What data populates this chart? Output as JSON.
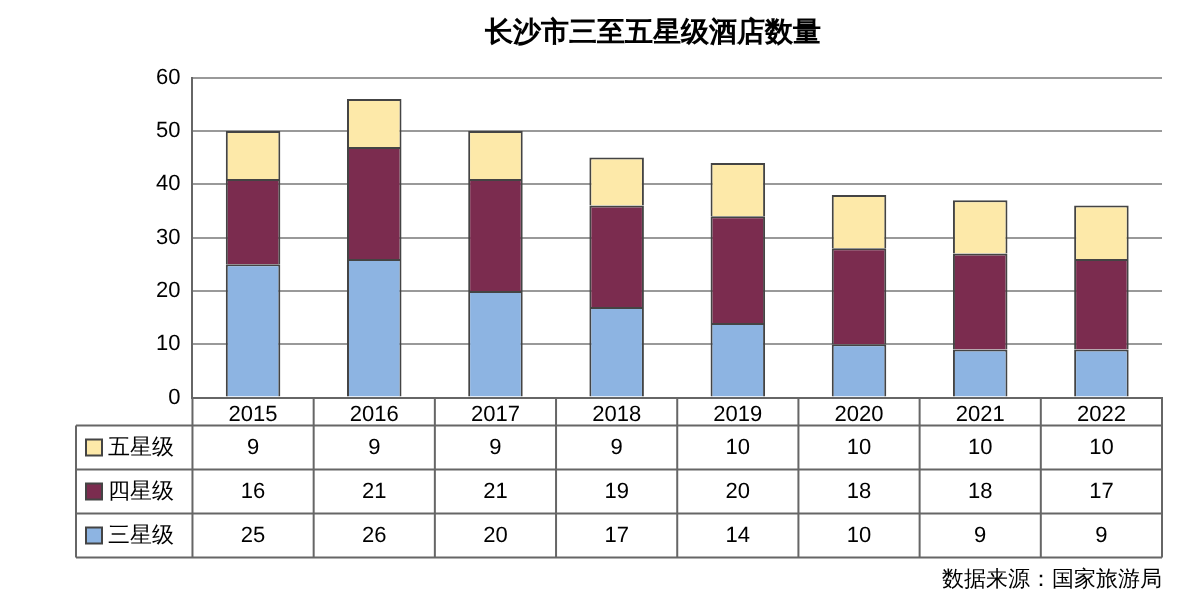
{
  "chart_data": {
    "type": "bar",
    "title": "长沙市三至五星级酒店数量",
    "categories": [
      "2015",
      "2016",
      "2017",
      "2018",
      "2019",
      "2020",
      "2021",
      "2022"
    ],
    "stacked": true,
    "series": [
      {
        "name": "三星级",
        "color": "#8db4e2",
        "values": [
          25,
          26,
          20,
          17,
          14,
          10,
          9,
          9
        ]
      },
      {
        "name": "四星级",
        "color": "#7b2c4f",
        "values": [
          16,
          21,
          21,
          19,
          20,
          18,
          18,
          17
        ]
      },
      {
        "name": "五星级",
        "color": "#fde9a9",
        "values": [
          9,
          9,
          9,
          9,
          10,
          10,
          10,
          10
        ]
      }
    ],
    "ylim": [
      0,
      60
    ],
    "yticks": [
      0,
      10,
      20,
      30,
      40,
      50,
      60
    ],
    "grid": "y",
    "legend": "bottom",
    "data_labels": true,
    "annotations": [
      "数据来源：国家旅游局"
    ]
  }
}
